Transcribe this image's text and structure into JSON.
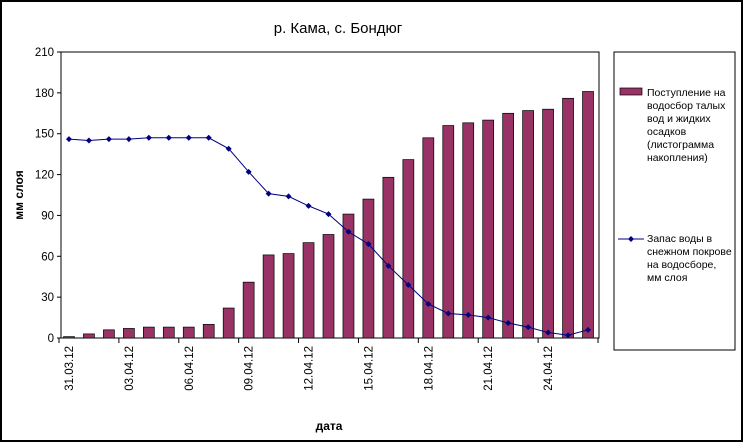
{
  "chart_data": {
    "type": "bar",
    "title": "р. Кама, с. Бондюг",
    "xlabel": "дата",
    "ylabel": "мм слоя",
    "ylim": [
      0,
      210
    ],
    "yticks": [
      0,
      30,
      60,
      90,
      120,
      150,
      180,
      210
    ],
    "categories": [
      "31.03.12",
      "01.04.12",
      "02.04.12",
      "03.04.12",
      "04.04.12",
      "05.04.12",
      "06.04.12",
      "07.04.12",
      "08.04.12",
      "09.04.12",
      "10.04.12",
      "11.04.12",
      "12.04.12",
      "13.04.12",
      "14.04.12",
      "15.04.12",
      "16.04.12",
      "17.04.12",
      "18.04.12",
      "19.04.12",
      "20.04.12",
      "21.04.12",
      "22.04.12",
      "23.04.12",
      "24.04.12",
      "25.04.12",
      "26.04.12"
    ],
    "tick_labels": [
      "31.03.12",
      "03.04.12",
      "06.04.12",
      "09.04.12",
      "12.04.12",
      "15.04.12",
      "18.04.12",
      "21.04.12",
      "24.04.12"
    ],
    "grid": false,
    "legend_position": "right",
    "colors": {
      "bar": "#993366",
      "line": "#000080"
    },
    "series": [
      {
        "name": "Поступление на водосбор талых вод и жидких осадков (листограмма накопления)",
        "type": "bar",
        "values": [
          1,
          3,
          6,
          7,
          8,
          8,
          8,
          10,
          22,
          41,
          61,
          62,
          70,
          76,
          91,
          102,
          118,
          131,
          147,
          156,
          158,
          160,
          165,
          167,
          168,
          176,
          181
        ]
      },
      {
        "name": "Запас воды в снежном покрове на водосборе, мм слоя",
        "type": "line",
        "values": [
          146,
          145,
          146,
          146,
          147,
          147,
          147,
          147,
          139,
          122,
          106,
          104,
          97,
          91,
          78,
          69,
          53,
          39,
          25,
          18,
          17,
          15,
          11,
          8,
          4,
          2,
          6
        ]
      }
    ]
  }
}
